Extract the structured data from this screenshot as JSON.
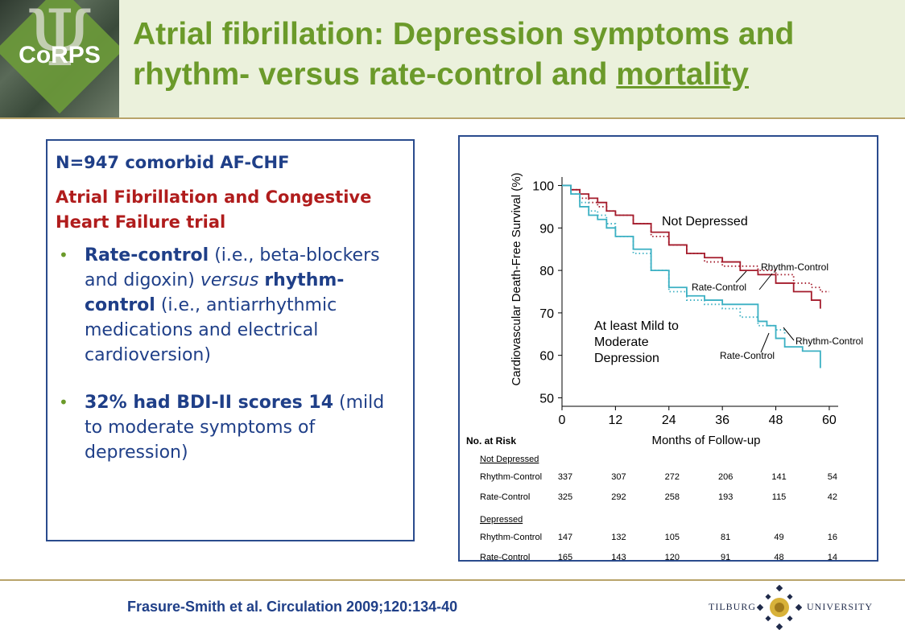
{
  "header": {
    "logo_text": "CoRPS",
    "title_part1": "Atrial fibrillation: Depression symptoms and rhythm- versus rate-control and ",
    "title_underlined": "mortality"
  },
  "study": {
    "n_label": "N=947 comorbid AF-CHF",
    "trial_label": "Atrial Fibrillation and Congestive Heart Failure trial",
    "bullets": [
      {
        "b1": "Rate-control",
        "t1": " (i.e., beta-blockers and digoxin) ",
        "i1": "versus",
        "t2": " ",
        "b2": "rhythm-control",
        "t3": "  (i.e., antiarrhythmic medications and electrical cardioversion)"
      },
      {
        "b1": "32% had BDI-II scores 14",
        "t1": " (mild to moderate symptoms of depression)"
      }
    ]
  },
  "chart_data": {
    "type": "line",
    "ylabel": "Cardiovascular Death-Free Survival (%)",
    "xlabel": "Months of Follow-up",
    "xticks": [
      0,
      12,
      24,
      36,
      48,
      60
    ],
    "yticks": [
      50,
      60,
      70,
      80,
      90,
      100
    ],
    "xlim": [
      0,
      62
    ],
    "ylim": [
      48,
      102
    ],
    "annotations": {
      "not_depressed": "Not Depressed",
      "depressed_line1": "At least Mild to",
      "depressed_line2": "Moderate",
      "depressed_line3": "Depression",
      "rhythm_upper": "Rhythm-Control",
      "rate_upper": "Rate-Control",
      "rhythm_lower": "Rhythm-Control",
      "rate_lower": "Rate-Control"
    },
    "series": [
      {
        "group": "Not Depressed",
        "arm": "Rhythm-Control",
        "style": "dotted",
        "color": "#a41b2b",
        "x": [
          0,
          2,
          4,
          6,
          8,
          10,
          12,
          16,
          20,
          24,
          28,
          32,
          36,
          40,
          44,
          48,
          52,
          56,
          58,
          60
        ],
        "y": [
          100,
          99,
          97,
          96,
          95,
          94,
          93,
          91,
          88,
          86,
          84,
          82,
          81,
          81,
          80,
          79,
          77,
          76,
          75,
          75
        ]
      },
      {
        "group": "Not Depressed",
        "arm": "Rate-Control",
        "style": "solid",
        "color": "#a41b2b",
        "x": [
          0,
          2,
          4,
          6,
          8,
          10,
          12,
          16,
          20,
          24,
          28,
          32,
          36,
          40,
          44,
          48,
          52,
          56,
          58
        ],
        "y": [
          100,
          99,
          98,
          97,
          96,
          94,
          93,
          91,
          89,
          86,
          84,
          83,
          82,
          80,
          79,
          77,
          75,
          73,
          71
        ]
      },
      {
        "group": "Depressed",
        "arm": "Rhythm-Control",
        "style": "dotted",
        "color": "#3bb0c3",
        "x": [
          0,
          2,
          4,
          6,
          8,
          10,
          12,
          16,
          20,
          24,
          28,
          32,
          36,
          40,
          44,
          48,
          50
        ],
        "y": [
          100,
          98,
          96,
          94,
          93,
          91,
          88,
          84,
          80,
          75,
          73,
          72,
          71,
          69,
          67,
          66,
          65
        ]
      },
      {
        "group": "Depressed",
        "arm": "Rate-Control",
        "style": "solid",
        "color": "#3bb0c3",
        "x": [
          0,
          2,
          4,
          6,
          8,
          10,
          12,
          16,
          20,
          24,
          28,
          32,
          36,
          40,
          44,
          46,
          48,
          50,
          54,
          58
        ],
        "y": [
          100,
          98,
          95,
          93,
          92,
          90,
          88,
          85,
          80,
          76,
          74,
          73,
          72,
          72,
          68,
          67,
          64,
          62,
          61,
          57
        ]
      }
    ],
    "at_risk": {
      "title": "No. at Risk",
      "groups": [
        {
          "name": "Not Depressed",
          "rows": [
            {
              "label": "Rhythm-Control",
              "values": [
                "337",
                "307",
                "272",
                "206",
                "141",
                "54"
              ]
            },
            {
              "label": "Rate-Control",
              "values": [
                "325",
                "292",
                "258",
                "193",
                "115",
                "42"
              ]
            }
          ]
        },
        {
          "name": "Depressed",
          "rows": [
            {
              "label": "Rhythm-Control",
              "values": [
                "147",
                "132",
                "105",
                "81",
                "49",
                "16"
              ]
            },
            {
              "label": "Rate-Control",
              "values": [
                "165",
                "143",
                "120",
                "91",
                "48",
                "14"
              ]
            }
          ]
        }
      ]
    }
  },
  "footer": {
    "citation": "Frasure-Smith et al. Circulation 2009;120:134-40",
    "uni_left": "TILBURG",
    "uni_right": "UNIVERSITY",
    "accent_color": "#6b9a2a",
    "border_color": "#2a4b8d"
  }
}
